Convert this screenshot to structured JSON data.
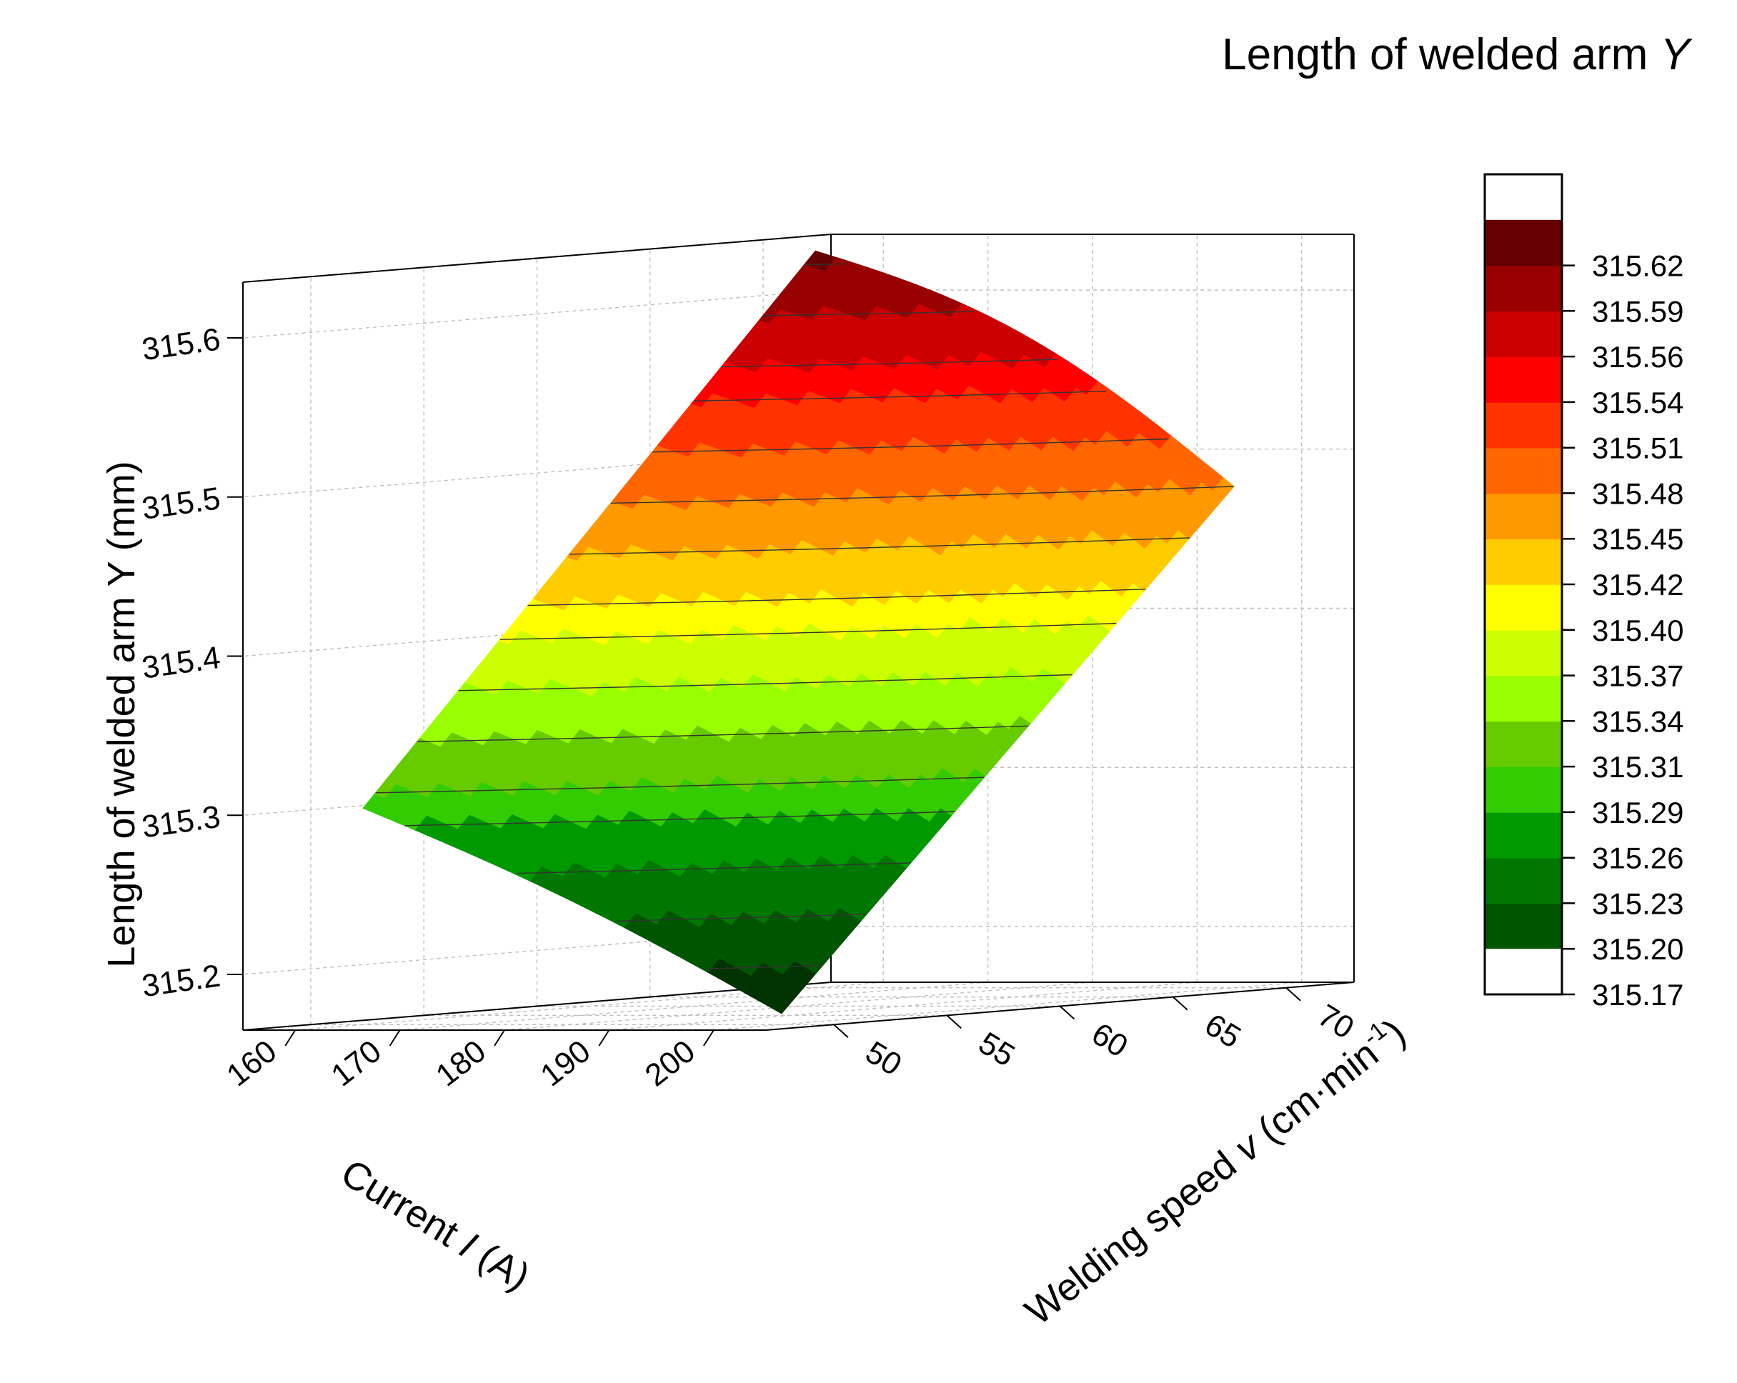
{
  "chart_data": {
    "type": "surface3d",
    "title": "Length of welded arm",
    "title_var": "Y",
    "x_axis": {
      "label_pre": "Current ",
      "label_var": "I",
      "label_post": " (A)",
      "ticks": [
        160,
        170,
        180,
        190,
        200
      ],
      "range": [
        155,
        205
      ]
    },
    "y_axis": {
      "label_pre": "Welding speed ",
      "label_var": "v",
      "label_post": " (cm·min",
      "label_sup": "-1",
      "label_end": ")",
      "ticks": [
        50,
        55,
        60,
        65,
        70
      ],
      "range": [
        47,
        73
      ]
    },
    "z_axis": {
      "label": "Length of welded arm Y (mm)",
      "ticks": [
        "315.2",
        "315.3",
        "315.4",
        "315.5",
        "315.6"
      ],
      "range": [
        315.165,
        315.635
      ]
    },
    "surface_corners": [
      {
        "current": 160,
        "speed": 50,
        "length": 315.301
      },
      {
        "current": 160,
        "speed": 70,
        "length": 315.628
      },
      {
        "current": 200,
        "speed": 70,
        "length": 315.48
      },
      {
        "current": 200,
        "speed": 50,
        "length": 315.172
      }
    ],
    "colorbar": {
      "levels": [
        "315.17",
        "315.20",
        "315.23",
        "315.26",
        "315.29",
        "315.31",
        "315.34",
        "315.37",
        "315.40",
        "315.42",
        "315.45",
        "315.48",
        "315.51",
        "315.54",
        "315.56",
        "315.59",
        "315.62"
      ],
      "colors": [
        "#003300",
        "#005500",
        "#007700",
        "#009900",
        "#33cc00",
        "#66cc00",
        "#99ff00",
        "#ccff00",
        "#ffff00",
        "#ffcc00",
        "#ff9900",
        "#ff6600",
        "#ff3300",
        "#ff0000",
        "#cc0000",
        "#990000",
        "#660000"
      ],
      "below_color": "#ffffff",
      "above_color": "#ffffff"
    },
    "grid": true
  }
}
